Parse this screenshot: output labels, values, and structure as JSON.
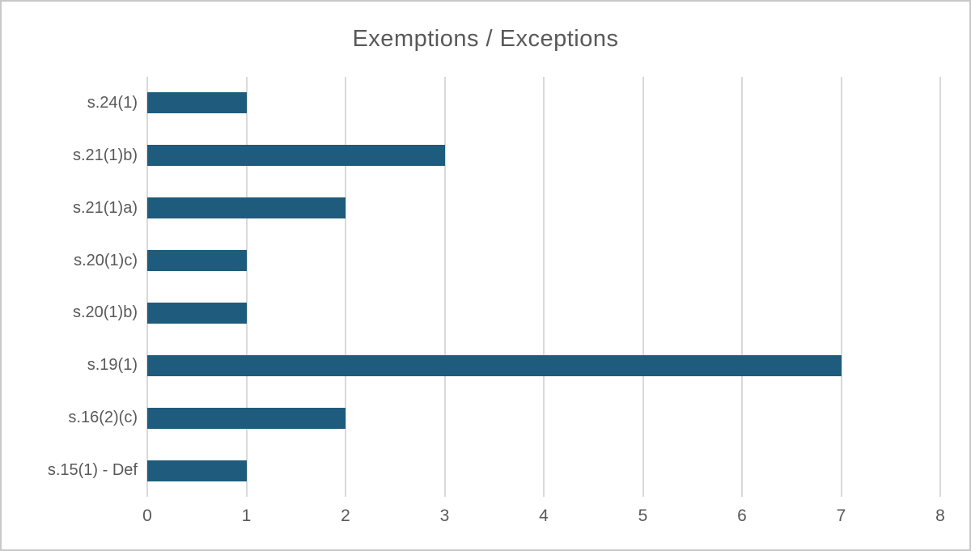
{
  "chart_data": {
    "type": "bar",
    "orientation": "horizontal",
    "title": "Exemptions / Exceptions",
    "categories": [
      "s.24(1)",
      "s.21(1)b)",
      "s.21(1)a)",
      "s.20(1)c)",
      "s.20(1)b)",
      "s.19(1)",
      "s.16(2)(c)",
      "s.15(1) - Def"
    ],
    "values": [
      1,
      3,
      2,
      1,
      1,
      7,
      2,
      1
    ],
    "xlabel": "",
    "ylabel": "",
    "xlim": [
      0,
      8
    ],
    "x_ticks": [
      0,
      1,
      2,
      3,
      4,
      5,
      6,
      7,
      8
    ],
    "grid": "vertical-only",
    "legend_position": "none",
    "colors": {
      "bar": "#1e5b7c",
      "gridline": "#d9d9d9",
      "text": "#595959",
      "frame_border": "#c8c8c8",
      "background": "#ffffff"
    }
  }
}
